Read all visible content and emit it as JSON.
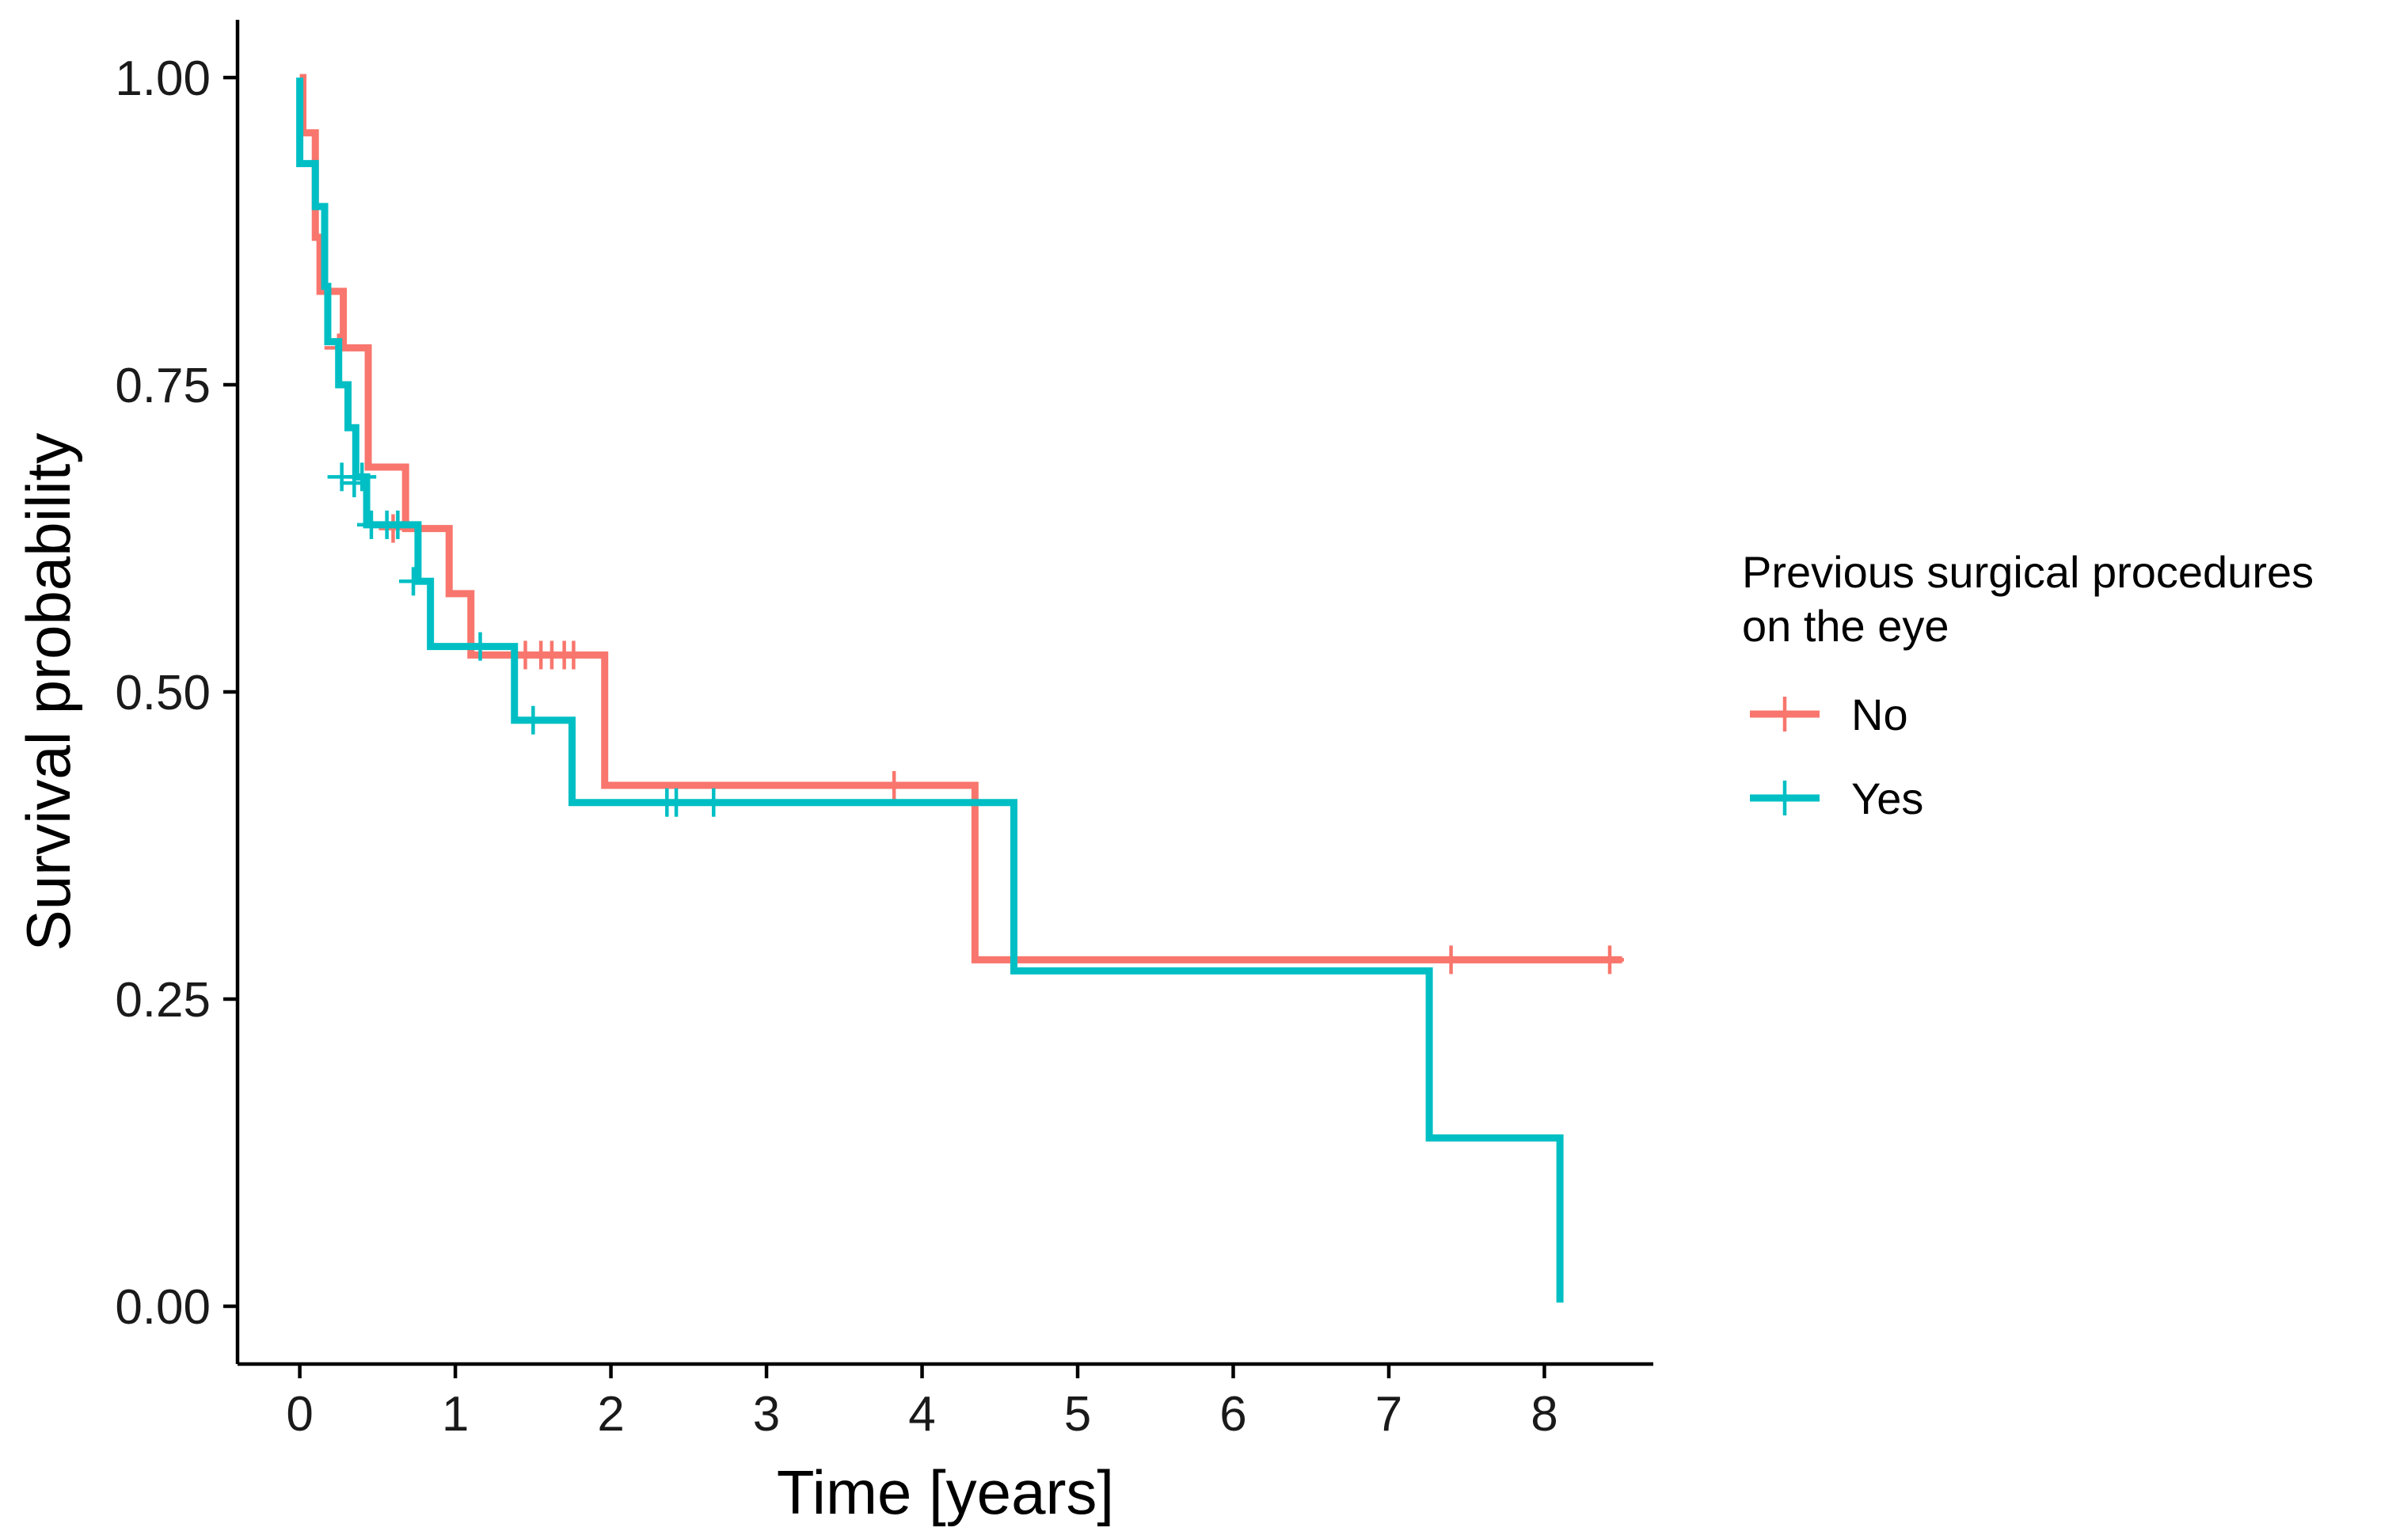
{
  "chart_data": {
    "type": "line",
    "subtype": "kaplan-meier",
    "title": "",
    "xlabel": "Time [years]",
    "ylabel": "Survival probability",
    "xlim": [
      -0.4,
      8.7
    ],
    "ylim": [
      -0.047,
      1.047
    ],
    "xticks": [
      0,
      1,
      2,
      3,
      4,
      5,
      6,
      7,
      8
    ],
    "xtick_labels": [
      "0",
      "1",
      "2",
      "3",
      "4",
      "5",
      "6",
      "7",
      "8"
    ],
    "yticks": [
      0.0,
      0.25,
      0.5,
      0.75,
      1.0
    ],
    "ytick_labels": [
      "0.00",
      "0.25",
      "0.50",
      "0.75",
      "1.00"
    ],
    "grid": false,
    "legend": {
      "title_lines": [
        "Previous surgical procedures",
        "on the eye"
      ],
      "position": "right"
    },
    "series": [
      {
        "name": "No",
        "color": "#F8766D",
        "steps": [
          [
            0,
            1.0
          ],
          [
            0.02,
            0.955
          ],
          [
            0.1,
            0.87
          ],
          [
            0.13,
            0.826
          ],
          [
            0.28,
            0.78
          ],
          [
            0.44,
            0.683
          ],
          [
            0.68,
            0.633
          ],
          [
            0.96,
            0.58
          ],
          [
            1.1,
            0.53
          ],
          [
            1.96,
            0.424
          ],
          [
            4.34,
            0.282
          ],
          [
            8.5,
            0.282
          ]
        ],
        "censors": [
          [
            0.25,
            0.78
          ],
          [
            0.6,
            0.633
          ],
          [
            1.45,
            0.53
          ],
          [
            1.55,
            0.53
          ],
          [
            1.62,
            0.53
          ],
          [
            1.7,
            0.53
          ],
          [
            1.76,
            0.53
          ],
          [
            3.82,
            0.424
          ],
          [
            7.4,
            0.282
          ],
          [
            8.42,
            0.282
          ]
        ]
      },
      {
        "name": "Yes",
        "color": "#00BFC4",
        "steps": [
          [
            0,
            1.0
          ],
          [
            0.0,
            0.93
          ],
          [
            0.1,
            0.895
          ],
          [
            0.16,
            0.83
          ],
          [
            0.18,
            0.785
          ],
          [
            0.25,
            0.75
          ],
          [
            0.31,
            0.715
          ],
          [
            0.36,
            0.675
          ],
          [
            0.43,
            0.636
          ],
          [
            0.76,
            0.59
          ],
          [
            0.84,
            0.537
          ],
          [
            1.38,
            0.477
          ],
          [
            1.75,
            0.41
          ],
          [
            4.59,
            0.273
          ],
          [
            7.26,
            0.137
          ],
          [
            8.1,
            0.003
          ]
        ],
        "censors": [
          [
            0.27,
            0.675
          ],
          [
            0.35,
            0.67
          ],
          [
            0.4,
            0.675
          ],
          [
            0.46,
            0.636
          ],
          [
            0.56,
            0.636
          ],
          [
            0.63,
            0.636
          ],
          [
            0.73,
            0.59
          ],
          [
            1.16,
            0.537
          ],
          [
            1.5,
            0.477
          ],
          [
            2.36,
            0.41
          ],
          [
            2.42,
            0.41
          ],
          [
            2.66,
            0.41
          ]
        ]
      }
    ]
  }
}
